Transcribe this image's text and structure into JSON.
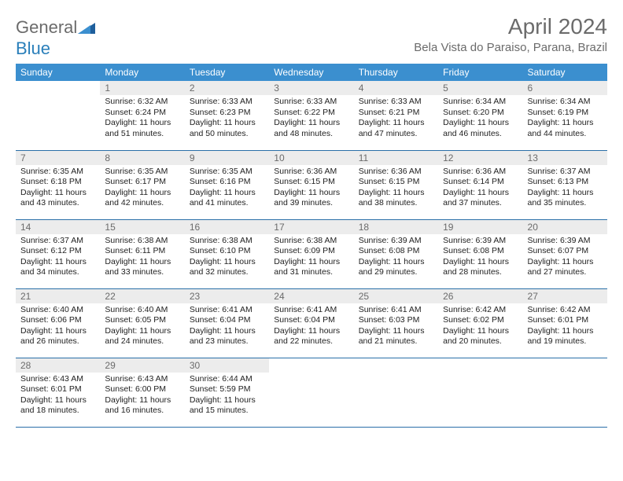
{
  "brand": {
    "general": "General",
    "blue": "Blue"
  },
  "title": "April 2024",
  "location": "Bela Vista do Paraiso, Parana, Brazil",
  "colors": {
    "header_bg": "#3b8fcf",
    "header_text": "#ffffff",
    "cell_border": "#2a6fa8",
    "daynum_bg": "#ececec",
    "daynum_text": "#6b6b6b",
    "body_text": "#222222",
    "title_text": "#6b6b6b",
    "logo_gray": "#6b6b6b",
    "logo_blue": "#2a7fba",
    "page_bg": "#ffffff"
  },
  "typography": {
    "title_fontsize": 28,
    "location_fontsize": 15,
    "header_fontsize": 12,
    "daynum_fontsize": 12,
    "body_fontsize": 10.5,
    "logo_fontsize": 22
  },
  "days_of_week": [
    "Sunday",
    "Monday",
    "Tuesday",
    "Wednesday",
    "Thursday",
    "Friday",
    "Saturday"
  ],
  "weeks": [
    [
      {
        "n": "",
        "sunrise": "",
        "sunset": "",
        "daylight": ""
      },
      {
        "n": "1",
        "sunrise": "Sunrise: 6:32 AM",
        "sunset": "Sunset: 6:24 PM",
        "daylight": "Daylight: 11 hours and 51 minutes."
      },
      {
        "n": "2",
        "sunrise": "Sunrise: 6:33 AM",
        "sunset": "Sunset: 6:23 PM",
        "daylight": "Daylight: 11 hours and 50 minutes."
      },
      {
        "n": "3",
        "sunrise": "Sunrise: 6:33 AM",
        "sunset": "Sunset: 6:22 PM",
        "daylight": "Daylight: 11 hours and 48 minutes."
      },
      {
        "n": "4",
        "sunrise": "Sunrise: 6:33 AM",
        "sunset": "Sunset: 6:21 PM",
        "daylight": "Daylight: 11 hours and 47 minutes."
      },
      {
        "n": "5",
        "sunrise": "Sunrise: 6:34 AM",
        "sunset": "Sunset: 6:20 PM",
        "daylight": "Daylight: 11 hours and 46 minutes."
      },
      {
        "n": "6",
        "sunrise": "Sunrise: 6:34 AM",
        "sunset": "Sunset: 6:19 PM",
        "daylight": "Daylight: 11 hours and 44 minutes."
      }
    ],
    [
      {
        "n": "7",
        "sunrise": "Sunrise: 6:35 AM",
        "sunset": "Sunset: 6:18 PM",
        "daylight": "Daylight: 11 hours and 43 minutes."
      },
      {
        "n": "8",
        "sunrise": "Sunrise: 6:35 AM",
        "sunset": "Sunset: 6:17 PM",
        "daylight": "Daylight: 11 hours and 42 minutes."
      },
      {
        "n": "9",
        "sunrise": "Sunrise: 6:35 AM",
        "sunset": "Sunset: 6:16 PM",
        "daylight": "Daylight: 11 hours and 41 minutes."
      },
      {
        "n": "10",
        "sunrise": "Sunrise: 6:36 AM",
        "sunset": "Sunset: 6:15 PM",
        "daylight": "Daylight: 11 hours and 39 minutes."
      },
      {
        "n": "11",
        "sunrise": "Sunrise: 6:36 AM",
        "sunset": "Sunset: 6:15 PM",
        "daylight": "Daylight: 11 hours and 38 minutes."
      },
      {
        "n": "12",
        "sunrise": "Sunrise: 6:36 AM",
        "sunset": "Sunset: 6:14 PM",
        "daylight": "Daylight: 11 hours and 37 minutes."
      },
      {
        "n": "13",
        "sunrise": "Sunrise: 6:37 AM",
        "sunset": "Sunset: 6:13 PM",
        "daylight": "Daylight: 11 hours and 35 minutes."
      }
    ],
    [
      {
        "n": "14",
        "sunrise": "Sunrise: 6:37 AM",
        "sunset": "Sunset: 6:12 PM",
        "daylight": "Daylight: 11 hours and 34 minutes."
      },
      {
        "n": "15",
        "sunrise": "Sunrise: 6:38 AM",
        "sunset": "Sunset: 6:11 PM",
        "daylight": "Daylight: 11 hours and 33 minutes."
      },
      {
        "n": "16",
        "sunrise": "Sunrise: 6:38 AM",
        "sunset": "Sunset: 6:10 PM",
        "daylight": "Daylight: 11 hours and 32 minutes."
      },
      {
        "n": "17",
        "sunrise": "Sunrise: 6:38 AM",
        "sunset": "Sunset: 6:09 PM",
        "daylight": "Daylight: 11 hours and 31 minutes."
      },
      {
        "n": "18",
        "sunrise": "Sunrise: 6:39 AM",
        "sunset": "Sunset: 6:08 PM",
        "daylight": "Daylight: 11 hours and 29 minutes."
      },
      {
        "n": "19",
        "sunrise": "Sunrise: 6:39 AM",
        "sunset": "Sunset: 6:08 PM",
        "daylight": "Daylight: 11 hours and 28 minutes."
      },
      {
        "n": "20",
        "sunrise": "Sunrise: 6:39 AM",
        "sunset": "Sunset: 6:07 PM",
        "daylight": "Daylight: 11 hours and 27 minutes."
      }
    ],
    [
      {
        "n": "21",
        "sunrise": "Sunrise: 6:40 AM",
        "sunset": "Sunset: 6:06 PM",
        "daylight": "Daylight: 11 hours and 26 minutes."
      },
      {
        "n": "22",
        "sunrise": "Sunrise: 6:40 AM",
        "sunset": "Sunset: 6:05 PM",
        "daylight": "Daylight: 11 hours and 24 minutes."
      },
      {
        "n": "23",
        "sunrise": "Sunrise: 6:41 AM",
        "sunset": "Sunset: 6:04 PM",
        "daylight": "Daylight: 11 hours and 23 minutes."
      },
      {
        "n": "24",
        "sunrise": "Sunrise: 6:41 AM",
        "sunset": "Sunset: 6:04 PM",
        "daylight": "Daylight: 11 hours and 22 minutes."
      },
      {
        "n": "25",
        "sunrise": "Sunrise: 6:41 AM",
        "sunset": "Sunset: 6:03 PM",
        "daylight": "Daylight: 11 hours and 21 minutes."
      },
      {
        "n": "26",
        "sunrise": "Sunrise: 6:42 AM",
        "sunset": "Sunset: 6:02 PM",
        "daylight": "Daylight: 11 hours and 20 minutes."
      },
      {
        "n": "27",
        "sunrise": "Sunrise: 6:42 AM",
        "sunset": "Sunset: 6:01 PM",
        "daylight": "Daylight: 11 hours and 19 minutes."
      }
    ],
    [
      {
        "n": "28",
        "sunrise": "Sunrise: 6:43 AM",
        "sunset": "Sunset: 6:01 PM",
        "daylight": "Daylight: 11 hours and 18 minutes."
      },
      {
        "n": "29",
        "sunrise": "Sunrise: 6:43 AM",
        "sunset": "Sunset: 6:00 PM",
        "daylight": "Daylight: 11 hours and 16 minutes."
      },
      {
        "n": "30",
        "sunrise": "Sunrise: 6:44 AM",
        "sunset": "Sunset: 5:59 PM",
        "daylight": "Daylight: 11 hours and 15 minutes."
      },
      {
        "n": "",
        "sunrise": "",
        "sunset": "",
        "daylight": ""
      },
      {
        "n": "",
        "sunrise": "",
        "sunset": "",
        "daylight": ""
      },
      {
        "n": "",
        "sunrise": "",
        "sunset": "",
        "daylight": ""
      },
      {
        "n": "",
        "sunrise": "",
        "sunset": "",
        "daylight": ""
      }
    ]
  ]
}
